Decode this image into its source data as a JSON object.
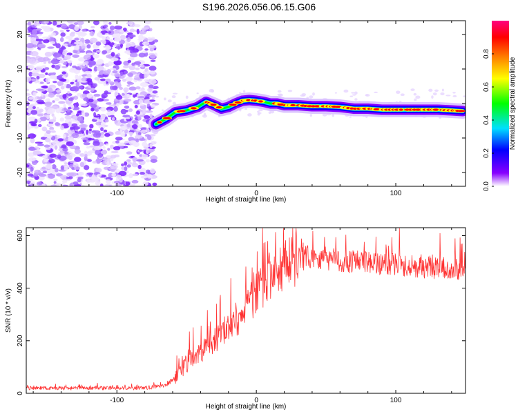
{
  "title": "S196.2026.056.06.15.G06",
  "chart_data": [
    {
      "type": "heatmap",
      "name": "spectrogram",
      "xlabel": "Height of straight line (km)",
      "ylabel": "Frequency (Hz)",
      "xlim": [
        -165,
        150
      ],
      "ylim": [
        -24,
        24
      ],
      "xticks": [
        -100,
        0,
        100
      ],
      "yticks": [
        -20,
        -10,
        0,
        10,
        20
      ],
      "noise_region_x": [
        -165,
        -72
      ],
      "ridge": {
        "x": [
          -72,
          -65,
          -58,
          -50,
          -42,
          -36,
          -30,
          -25,
          -20,
          -15,
          -10,
          -5,
          0,
          5,
          10,
          15,
          20,
          30,
          40,
          50,
          60,
          70,
          80,
          90,
          100,
          110,
          120,
          130,
          140,
          148
        ],
        "freq": [
          -6,
          -4.5,
          -2.5,
          -2,
          -1,
          0.5,
          -0.5,
          -1.5,
          -1,
          0,
          0.8,
          1,
          0.8,
          0.5,
          0,
          0,
          -0.5,
          -0.5,
          -0.8,
          -0.8,
          -1,
          -1.5,
          -1.5,
          -1.8,
          -1.8,
          -1.8,
          -1.8,
          -1.8,
          -2,
          -2.2
        ]
      },
      "colorbar": {
        "label": "Normalized spectral amplitude",
        "ticks": [
          0.0,
          0.2,
          0.4,
          0.6,
          0.8
        ],
        "tick_labels": [
          "0.0",
          "0.2",
          "0.4",
          "0.6",
          "0.8"
        ],
        "range": [
          0,
          1
        ],
        "colors": [
          "#ffffff",
          "#8800ff",
          "#0000ff",
          "#00e0ff",
          "#00ff00",
          "#ffff00",
          "#ff8000",
          "#ff0000",
          "#ff0080"
        ]
      }
    },
    {
      "type": "line",
      "name": "snr",
      "xlabel": "Height of straight line (km)",
      "ylabel": "SNR (10 * v/v)",
      "xlim": [
        -165,
        150
      ],
      "ylim": [
        0,
        630
      ],
      "xticks": [
        -100,
        0,
        100
      ],
      "yticks": [
        0,
        200,
        400,
        600
      ],
      "color": "#ff3333",
      "trend": {
        "x": [
          -165,
          -80,
          -65,
          -58,
          -50,
          -40,
          -30,
          -20,
          -10,
          0,
          10,
          20,
          30,
          40,
          50,
          70,
          100,
          120,
          150
        ],
        "y": [
          20,
          20,
          30,
          60,
          110,
          160,
          200,
          240,
          300,
          380,
          440,
          480,
          510,
          520,
          510,
          500,
          490,
          480,
          470
        ]
      }
    }
  ]
}
